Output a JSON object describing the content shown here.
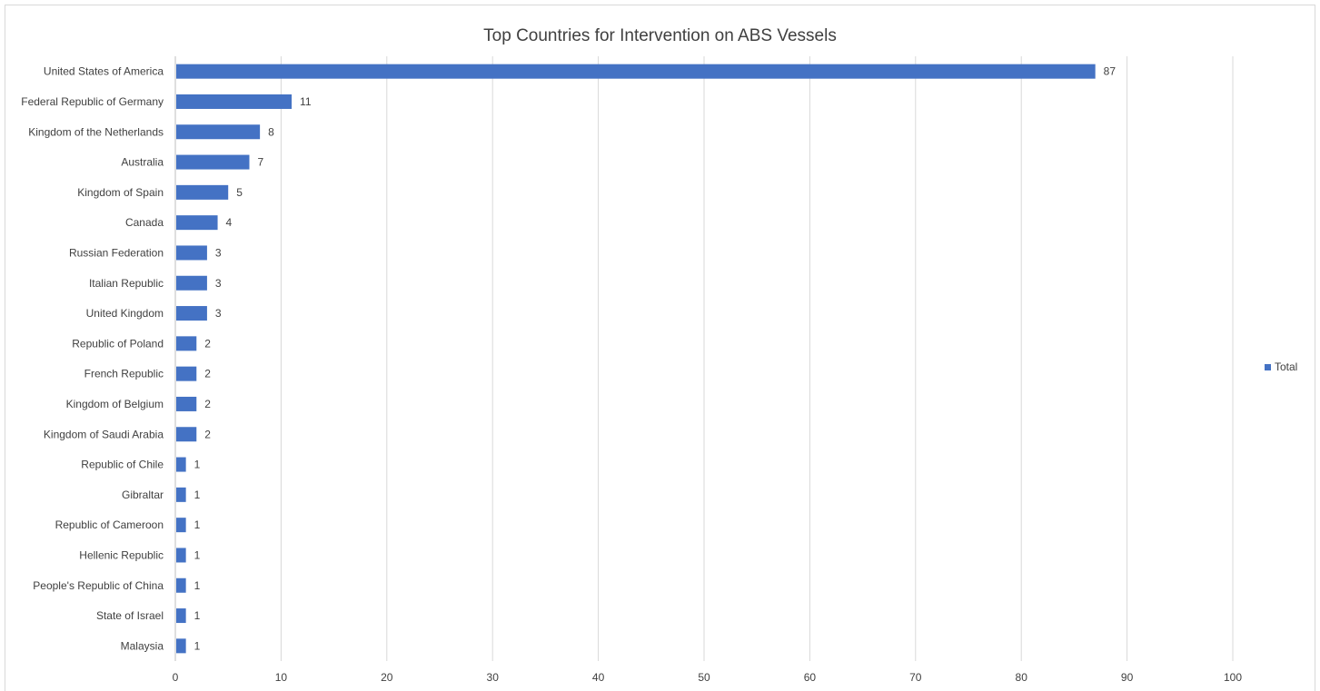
{
  "chart_data": {
    "type": "bar",
    "orientation": "horizontal",
    "title": "Top Countries for Intervention on ABS Vessels",
    "xlabel": "",
    "ylabel": "",
    "xlim": [
      0,
      100
    ],
    "xticks": [
      0,
      10,
      20,
      30,
      40,
      50,
      60,
      70,
      80,
      90,
      100
    ],
    "grid": "vertical",
    "legend_position": "right",
    "bar_color": "#4472C4",
    "categories": [
      "United States of America",
      "Federal Republic of Germany",
      "Kingdom of the Netherlands",
      "Australia",
      "Kingdom of Spain",
      "Canada",
      "Russian Federation",
      "Italian Republic",
      "United Kingdom",
      "Republic of Poland",
      "French Republic",
      "Kingdom of Belgium",
      "Kingdom of Saudi Arabia",
      "Republic of Chile",
      "Gibraltar",
      "Republic of Cameroon",
      "Hellenic Republic",
      "People's Republic of China",
      "State of Israel",
      "Malaysia"
    ],
    "series": [
      {
        "name": "Total",
        "values": [
          87,
          11,
          8,
          7,
          5,
          4,
          3,
          3,
          3,
          2,
          2,
          2,
          2,
          1,
          1,
          1,
          1,
          1,
          1,
          1
        ]
      }
    ]
  }
}
